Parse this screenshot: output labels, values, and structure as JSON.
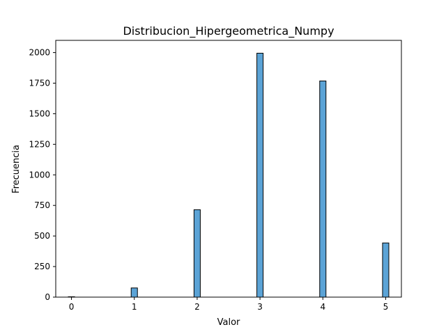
{
  "chart_data": {
    "type": "bar",
    "title": "Distribucion_Hipergeometrica_Numpy",
    "xlabel": "Valor",
    "ylabel": "Frecuencia",
    "xlim": [
      -0.25,
      5.25
    ],
    "ylim": [
      0,
      2100
    ],
    "x_ticks": [
      0,
      1,
      2,
      3,
      4,
      5
    ],
    "y_ticks": [
      0,
      250,
      500,
      750,
      1000,
      1250,
      1500,
      1750,
      2000
    ],
    "bar_width": 0.1,
    "x": [
      0,
      1,
      2,
      3,
      4,
      5
    ],
    "values": [
      3,
      75,
      715,
      1995,
      1768,
      443
    ],
    "colors": {
      "bar_fill": "#5ba3d6",
      "bar_edge": "#000000"
    },
    "grid": false
  }
}
